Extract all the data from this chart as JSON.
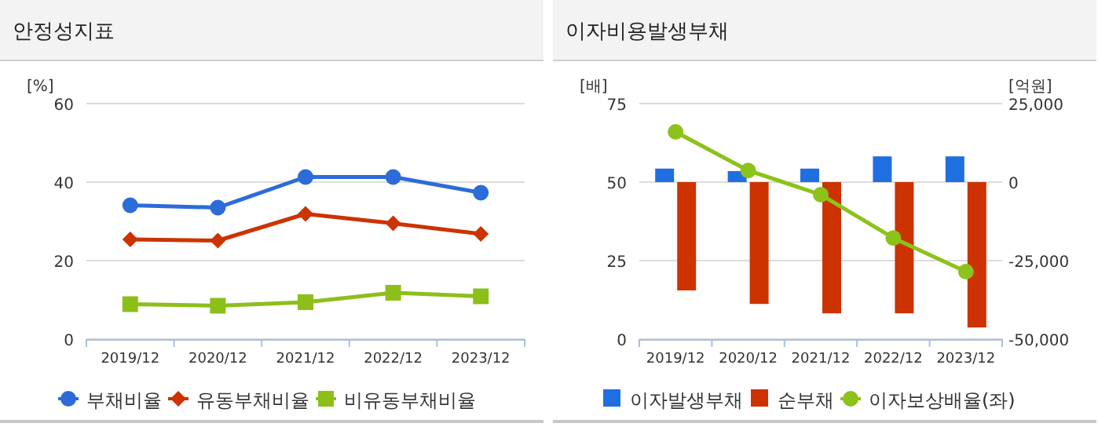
{
  "chart_data": [
    {
      "type": "line",
      "title": "안정성지표",
      "ylabel": "[%]",
      "categories": [
        "2019/12",
        "2020/12",
        "2021/12",
        "2022/12",
        "2023/12"
      ],
      "ylim": [
        0,
        60
      ],
      "yticks": [
        0,
        20,
        40,
        60
      ],
      "grid": "y",
      "legend": "bottom",
      "line_style": "solid",
      "series": [
        {
          "name": "부채비율",
          "color": "#2b6cd9",
          "marker": "circle",
          "values": [
            34.1,
            33.5,
            41.3,
            41.3,
            37.3
          ]
        },
        {
          "name": "유동부채비율",
          "color": "#cc3300",
          "marker": "diamond",
          "values": [
            25.4,
            25.1,
            31.9,
            29.5,
            26.8
          ]
        },
        {
          "name": "비유동부채비율",
          "color": "#8cbf1a",
          "marker": "square",
          "values": [
            8.9,
            8.5,
            9.4,
            11.8,
            10.9
          ]
        }
      ]
    },
    {
      "type": "bar",
      "title": "이자비용발생부채",
      "ylabel": "[배]",
      "y2label": "[억원]",
      "categories": [
        "2019/12",
        "2020/12",
        "2021/12",
        "2022/12",
        "2023/12"
      ],
      "ylim": [
        0,
        75
      ],
      "yticks": [
        0,
        25,
        50,
        75
      ],
      "y2lim": [
        -50000,
        25000
      ],
      "y2ticks": [
        {
          "value": -50000,
          "label": "-50,000"
        },
        {
          "value": -25000,
          "label": "-25,000"
        },
        {
          "value": 0,
          "label": "0"
        },
        {
          "value": 25000,
          "label": "25,000"
        }
      ],
      "grid": "y",
      "legend": "bottom",
      "series": [
        {
          "name": "이자발생부채",
          "axis": "y2",
          "color": "#1f6fe0",
          "values": [
            4300,
            3500,
            4300,
            8200,
            8200
          ]
        },
        {
          "name": "순부채",
          "axis": "y2",
          "color": "#cc3300",
          "values": [
            -34500,
            -38800,
            -41800,
            -41800,
            -46300
          ]
        },
        {
          "name": "이자보상배율(좌)",
          "type": "line",
          "axis": "y",
          "color": "#8cc21a",
          "marker": "circle",
          "values": [
            66,
            53.7,
            46,
            32.2,
            21.5
          ]
        }
      ]
    }
  ]
}
